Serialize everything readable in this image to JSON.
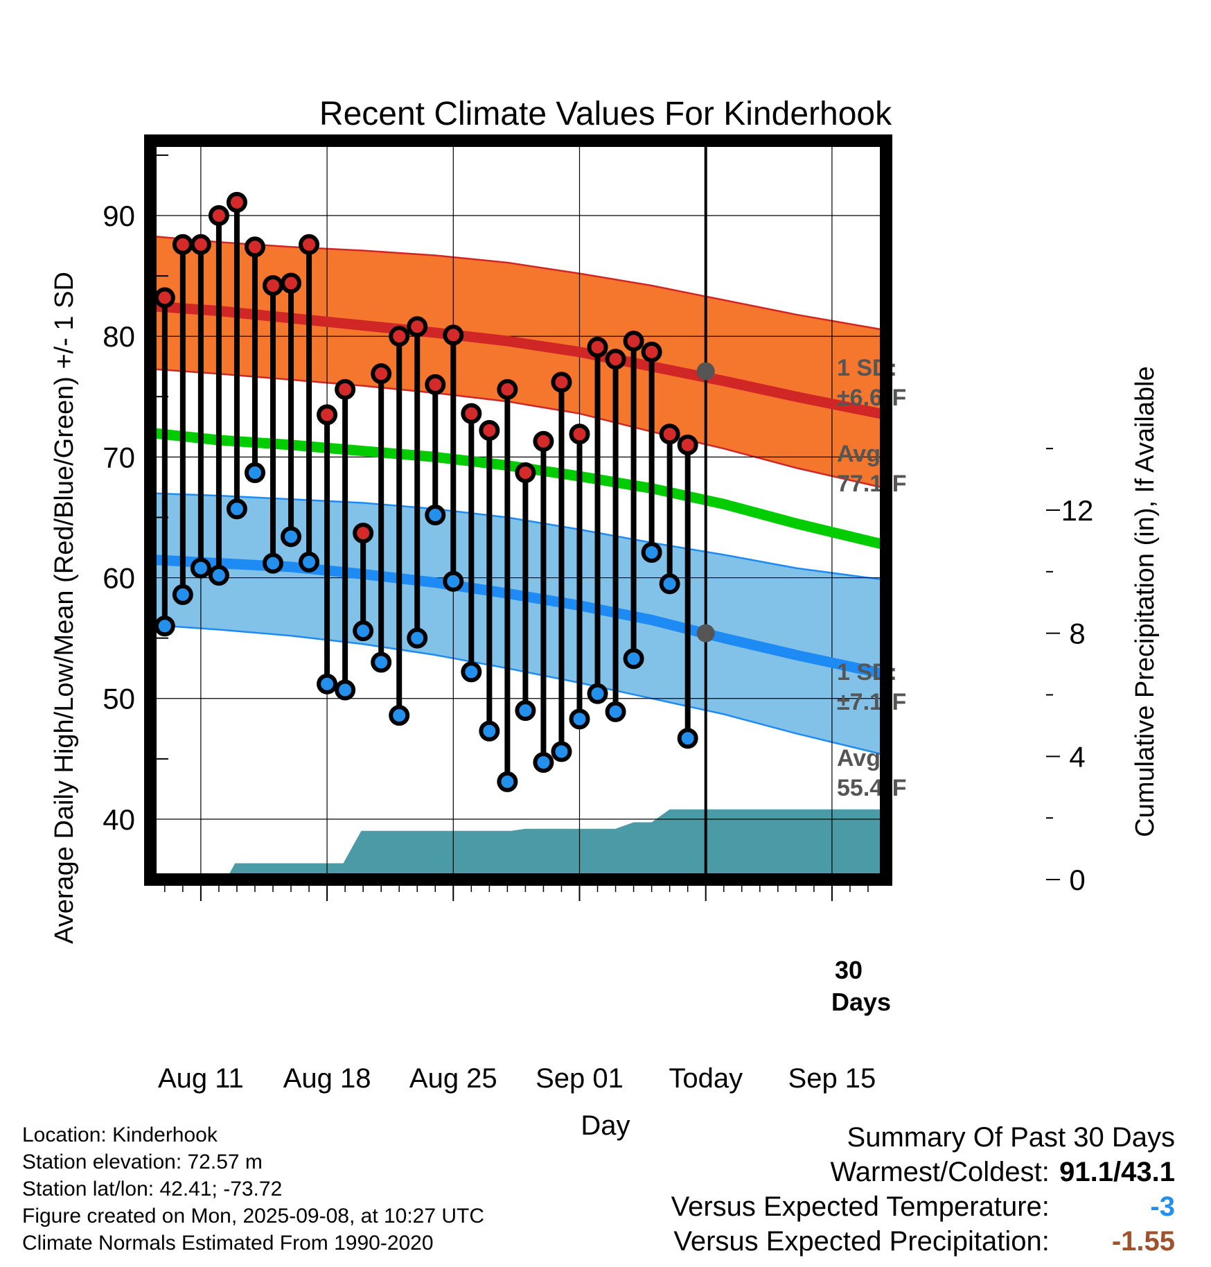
{
  "colors": {
    "high_band": "#F4772D",
    "high_line": "#D12626",
    "low_band": "#82C1E8",
    "low_line": "#1E8BF5",
    "mean_line": "#00CC00",
    "precip_fill": "#4A9BA5",
    "high_marker": "#D42A2A",
    "low_marker": "#2390EE",
    "annotation": "#555555",
    "temp_anomaly": "#2390EE",
    "precip_anomaly": "#A0522D"
  },
  "chart_data": {
    "type": "line",
    "title": "Recent Climate Values For Kinderhook",
    "xlabel": "Day",
    "ylabel": "Average Daily High/Low/Mean (Red/Blue/Green) +/- 1 SD",
    "y2label": "Cumulative Precipitation (in), If Available",
    "x_ticks": [
      {
        "day": 11,
        "label": "Aug 11"
      },
      {
        "day": 18,
        "label": "Aug 18"
      },
      {
        "day": 25,
        "label": "Aug 25"
      },
      {
        "day": 32,
        "label": "Sep 01"
      },
      {
        "day": 39,
        "label": "Today"
      },
      {
        "day": 46,
        "label": "Sep 15"
      }
    ],
    "x_range": [
      8.2,
      49
    ],
    "ylim": [
      35,
      96.2
    ],
    "y_ticks": [
      40,
      50,
      60,
      70,
      80,
      90
    ],
    "y2lim": [
      0,
      24
    ],
    "y2_ticks": [
      0,
      4,
      8,
      12
    ],
    "today_day": 39,
    "normals": {
      "x": [
        8.2,
        12,
        16,
        20,
        24,
        28,
        32,
        36,
        40,
        44,
        49
      ],
      "high_avg": [
        82.5,
        82.1,
        81.5,
        80.9,
        80.3,
        79.6,
        78.7,
        77.5,
        76.3,
        75.0,
        73.5
      ],
      "high_upper": [
        88.3,
        87.8,
        87.4,
        87.1,
        86.7,
        86.1,
        85.2,
        84.2,
        83.0,
        81.8,
        80.5
      ],
      "high_lower": [
        77.3,
        76.9,
        76.4,
        75.9,
        75.3,
        74.6,
        73.6,
        72.1,
        70.7,
        69.1,
        67.4
      ],
      "mean_avg": [
        72.0,
        71.4,
        71.0,
        70.5,
        70.0,
        69.3,
        68.4,
        67.4,
        66.1,
        64.5,
        62.7
      ],
      "low_avg": [
        61.5,
        61.2,
        60.9,
        60.3,
        59.6,
        58.7,
        57.7,
        56.5,
        55.0,
        53.6,
        52.0
      ],
      "low_upper": [
        67.0,
        66.8,
        66.5,
        66.2,
        65.7,
        65.0,
        64.0,
        62.9,
        61.9,
        60.8,
        59.8
      ],
      "low_lower": [
        56.1,
        55.7,
        55.2,
        54.5,
        53.6,
        52.5,
        51.3,
        50.0,
        48.7,
        47.1,
        45.3
      ]
    },
    "series": [
      {
        "name": "High",
        "x": [
          9,
          10,
          11,
          12,
          13,
          14,
          15,
          16,
          17,
          18,
          19,
          20,
          21,
          22,
          23,
          24,
          25,
          26,
          27,
          28,
          29,
          30,
          31,
          32,
          33,
          34,
          35,
          36,
          37,
          38
        ],
        "values": [
          83.2,
          87.6,
          87.6,
          90.0,
          91.1,
          87.4,
          84.2,
          84.4,
          87.6,
          73.5,
          75.6,
          63.7,
          76.9,
          80.0,
          80.8,
          76.0,
          80.1,
          73.6,
          72.2,
          75.6,
          68.7,
          71.3,
          76.2,
          71.9,
          79.1,
          78.1,
          79.6,
          78.7,
          71.9,
          71.0
        ]
      },
      {
        "name": "Low",
        "x": [
          9,
          10,
          11,
          12,
          13,
          14,
          15,
          16,
          17,
          18,
          19,
          20,
          21,
          22,
          23,
          24,
          25,
          26,
          27,
          28,
          29,
          30,
          31,
          32,
          33,
          34,
          35,
          36,
          37,
          38
        ],
        "values": [
          56.0,
          58.6,
          60.8,
          60.2,
          65.7,
          68.7,
          61.2,
          63.4,
          61.3,
          51.2,
          50.7,
          55.6,
          53.0,
          48.6,
          55.0,
          65.2,
          59.7,
          52.2,
          47.3,
          43.1,
          49.0,
          44.7,
          45.6,
          48.3,
          50.4,
          48.9,
          53.3,
          62.1,
          59.5,
          46.7
        ]
      },
      {
        "name": "Cumulative Precipitation",
        "x": [
          8.2,
          12.4,
          12.9,
          18.9,
          19.9,
          24,
          25,
          28.2,
          29,
          33,
          34,
          35,
          36,
          37,
          37.9,
          39,
          49
        ],
        "values": [
          0,
          0,
          0.53,
          0.53,
          1.58,
          1.58,
          1.58,
          1.58,
          1.65,
          1.65,
          1.65,
          1.86,
          1.86,
          2.28,
          2.28,
          2.28,
          2.28
        ]
      }
    ],
    "annotations": {
      "high_sd_label": "1 SD:",
      "high_sd_value": "±6.6°F",
      "high_avg_label": "Avg:",
      "high_avg_value": "77.1°F",
      "high_avg_today": 77.1,
      "low_sd_label": "1 SD:",
      "low_sd_value": "±7.1°F",
      "low_avg_label": "Avg:",
      "low_avg_value": "55.4°F",
      "low_avg_today": 55.4,
      "days_line1": "30",
      "days_line2": "Days"
    }
  },
  "metadata": {
    "location": "Location: Kinderhook",
    "elevation": "Station elevation: 72.57 m",
    "latlon": "Station lat/lon: 42.41; -73.72",
    "created": "Figure created on Mon, 2025-09-08, at 10:27 UTC",
    "normals": "Climate Normals Estimated From 1990-2020"
  },
  "summary": {
    "heading": "Summary Of Past 30 Days",
    "warmest_label": "Warmest/Coldest:",
    "warmest_value": "91.1/43.1",
    "temp_label": "Versus Expected Temperature:",
    "temp_value": "-3",
    "precip_label": "Versus Expected Precipitation:",
    "precip_value": "-1.55"
  }
}
